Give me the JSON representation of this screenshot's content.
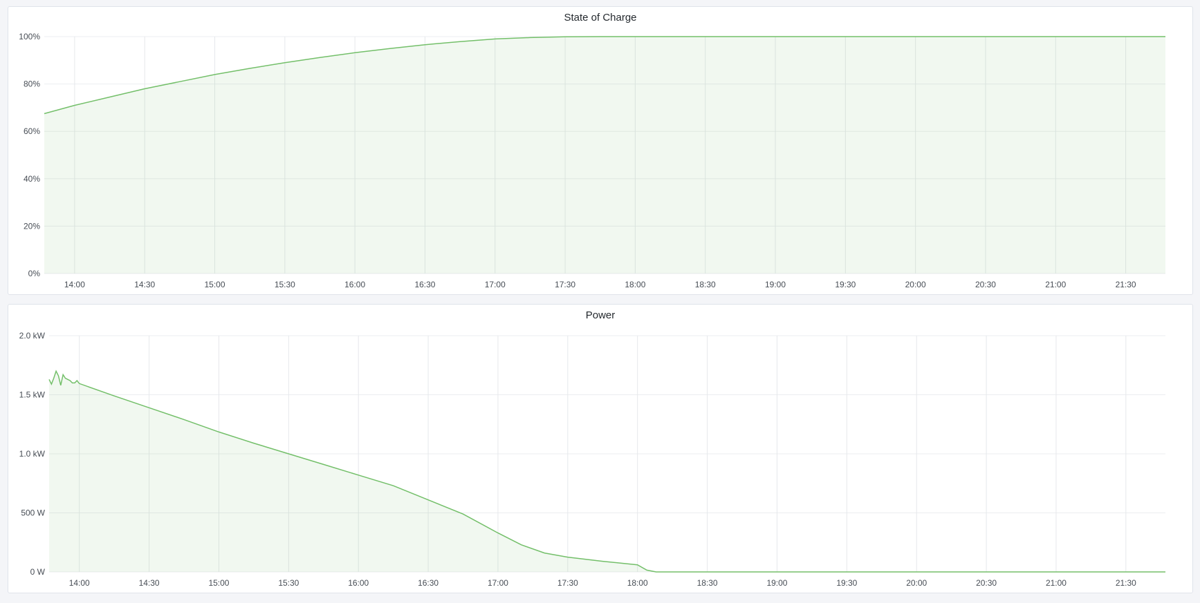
{
  "chart_data": [
    {
      "type": "area",
      "title": "State of Charge",
      "y_ticks": [
        "0%",
        "20%",
        "40%",
        "60%",
        "80%",
        "100%"
      ],
      "ylim": [
        0,
        100
      ],
      "x_ticks": [
        "14:00",
        "14:30",
        "15:00",
        "15:30",
        "16:00",
        "16:30",
        "17:00",
        "17:30",
        "18:00",
        "18:30",
        "19:00",
        "19:30",
        "20:00",
        "20:30",
        "21:00",
        "21:30"
      ],
      "xlim": [
        "13:47",
        "21:47"
      ],
      "grid": true,
      "color": "#73bf69",
      "series": [
        {
          "x": [
            "13:47",
            "14:00",
            "14:15",
            "14:30",
            "14:45",
            "15:00",
            "15:15",
            "15:30",
            "15:45",
            "16:00",
            "16:15",
            "16:30",
            "16:45",
            "17:00",
            "17:15",
            "17:30",
            "17:45",
            "18:00",
            "21:47"
          ],
          "y": [
            67.5,
            71,
            74.5,
            78,
            81,
            84,
            86.6,
            89,
            91.2,
            93.2,
            95,
            96.6,
            97.9,
            99,
            99.6,
            99.9,
            100,
            100,
            100
          ]
        }
      ]
    },
    {
      "type": "area",
      "title": "Power",
      "y_ticks": [
        "0 W",
        "500 W",
        "1.0 kW",
        "1.5 kW",
        "2.0 kW"
      ],
      "ylim": [
        0,
        2000
      ],
      "x_ticks": [
        "14:00",
        "14:30",
        "15:00",
        "15:30",
        "16:00",
        "16:30",
        "17:00",
        "17:30",
        "18:00",
        "18:30",
        "19:00",
        "19:30",
        "20:00",
        "20:30",
        "21:00",
        "21:30"
      ],
      "xlim": [
        "13:47",
        "21:47"
      ],
      "grid": true,
      "color": "#73bf69",
      "series": [
        {
          "x": [
            "13:47",
            "13:48",
            "13:49",
            "13:50",
            "13:51",
            "13:52",
            "13:53",
            "13:54",
            "13:55",
            "13:56",
            "13:57",
            "13:58",
            "13:59",
            "14:00",
            "14:15",
            "14:30",
            "14:45",
            "15:00",
            "15:15",
            "15:30",
            "15:45",
            "16:00",
            "16:15",
            "16:30",
            "16:45",
            "17:00",
            "17:10",
            "17:20",
            "17:30",
            "17:45",
            "18:00",
            "18:04",
            "18:08",
            "21:47"
          ],
          "y": [
            1630,
            1590,
            1640,
            1700,
            1660,
            1580,
            1670,
            1640,
            1630,
            1620,
            1600,
            1600,
            1620,
            1595,
            1490,
            1390,
            1290,
            1185,
            1090,
            1000,
            910,
            820,
            730,
            610,
            490,
            330,
            230,
            160,
            125,
            90,
            60,
            15,
            0,
            0
          ]
        }
      ]
    }
  ]
}
